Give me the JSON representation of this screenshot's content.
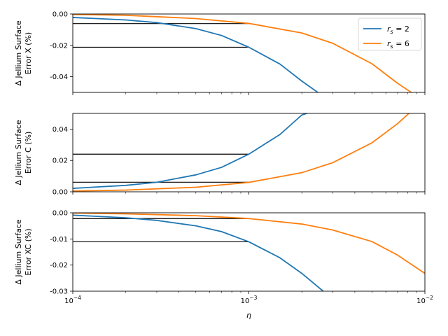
{
  "chart_data": [
    {
      "type": "line",
      "ylabel_lines": [
        "Δ Jellium Surface",
        "Error X (%)"
      ],
      "xscale": "log",
      "xlim": [
        0.0001,
        0.01
      ],
      "ylim": [
        -0.05,
        0.0
      ],
      "yticks": [
        0.0,
        -0.02,
        -0.04
      ],
      "ytick_labels": [
        "0.00",
        "-0.02",
        "-0.04"
      ],
      "legend": "top-right",
      "series": [
        {
          "name": "r_s = 2",
          "color": "#1f77b4",
          "x": [
            0.0001,
            0.0002,
            0.0003,
            0.0005,
            0.0007,
            0.001,
            0.0015,
            0.002,
            0.0025
          ],
          "y": [
            -0.0022,
            -0.0038,
            -0.0055,
            -0.0093,
            -0.0137,
            -0.0212,
            -0.0319,
            -0.0428,
            -0.0505
          ]
        },
        {
          "name": "r_s = 6",
          "color": "#ff7f0e",
          "x": [
            0.0001,
            0.0002,
            0.0005,
            0.001,
            0.002,
            0.003,
            0.005,
            0.007,
            0.0085
          ],
          "y": [
            -0.0003,
            -0.0008,
            -0.0029,
            -0.006,
            -0.0121,
            -0.0187,
            -0.0317,
            -0.0442,
            -0.0505
          ]
        }
      ],
      "hlines": [
        {
          "y": -0.0061,
          "x0": 0.0001,
          "x1": 0.001
        },
        {
          "y": -0.0212,
          "x0": 0.0001,
          "x1": 0.001
        }
      ]
    },
    {
      "type": "line",
      "ylabel_lines": [
        "Δ Jellium Surface",
        "Error C (%)"
      ],
      "xscale": "log",
      "xlim": [
        0.0001,
        0.01
      ],
      "ylim": [
        0.0,
        0.05
      ],
      "yticks": [
        0.0,
        0.02,
        0.04
      ],
      "ytick_labels": [
        "0.00",
        "0.02",
        "0.04"
      ],
      "series": [
        {
          "name": "r_s = 2",
          "color": "#1f77b4",
          "x": [
            0.0001,
            0.0002,
            0.0003,
            0.0005,
            0.0007,
            0.001,
            0.0015,
            0.002,
            0.0022
          ],
          "y": [
            0.0022,
            0.0041,
            0.0061,
            0.0108,
            0.0156,
            0.024,
            0.0365,
            0.049,
            0.0505
          ]
        },
        {
          "name": "r_s = 6",
          "color": "#ff7f0e",
          "x": [
            0.0001,
            0.0002,
            0.0005,
            0.001,
            0.002,
            0.003,
            0.005,
            0.007,
            0.0082
          ],
          "y": [
            0.0005,
            0.0011,
            0.0029,
            0.006,
            0.0122,
            0.0186,
            0.0312,
            0.0435,
            0.0505
          ]
        }
      ],
      "hlines": [
        {
          "y": 0.0061,
          "x0": 0.0001,
          "x1": 0.001
        },
        {
          "y": 0.024,
          "x0": 0.0001,
          "x1": 0.001
        }
      ]
    },
    {
      "type": "line",
      "ylabel_lines": [
        "Δ Jellium Surface",
        "Error XC (%)"
      ],
      "xlabel": "η",
      "xscale": "log",
      "xlim": [
        0.0001,
        0.01
      ],
      "ylim": [
        -0.03,
        0.0
      ],
      "yticks": [
        0.0,
        -0.01,
        -0.02,
        -0.03
      ],
      "ytick_labels": [
        "0.00",
        "-0.01",
        "-0.02",
        "-0.03"
      ],
      "xtick_labels": [
        {
          "base": "10",
          "exp": "−4"
        },
        {
          "base": "10",
          "exp": "−3"
        },
        {
          "base": "10",
          "exp": "−2"
        }
      ],
      "series": [
        {
          "name": "r_s = 2",
          "color": "#1f77b4",
          "x": [
            0.0001,
            0.0002,
            0.0003,
            0.0005,
            0.0007,
            0.001,
            0.0015,
            0.002,
            0.0027
          ],
          "y": [
            -0.0009,
            -0.0019,
            -0.0029,
            -0.005,
            -0.0072,
            -0.0111,
            -0.0172,
            -0.0232,
            -0.0305
          ]
        },
        {
          "name": "r_s = 6",
          "color": "#ff7f0e",
          "x": [
            0.0001,
            0.0002,
            0.0005,
            0.001,
            0.002,
            0.003,
            0.005,
            0.007,
            0.01
          ],
          "y": [
            -0.0001,
            -0.0004,
            -0.0011,
            -0.0022,
            -0.0043,
            -0.0066,
            -0.011,
            -0.0162,
            -0.0232
          ]
        }
      ],
      "hlines": [
        {
          "y": -0.0022,
          "x0": 0.0001,
          "x1": 0.001
        },
        {
          "y": -0.0111,
          "x0": 0.0001,
          "x1": 0.001
        }
      ]
    }
  ],
  "legend": {
    "entries": [
      {
        "symbol": "r",
        "subscript": "s",
        "suffix": " = 2",
        "color": "#1f77b4"
      },
      {
        "symbol": "r",
        "subscript": "s",
        "suffix": " = 6",
        "color": "#ff7f0e"
      }
    ]
  }
}
